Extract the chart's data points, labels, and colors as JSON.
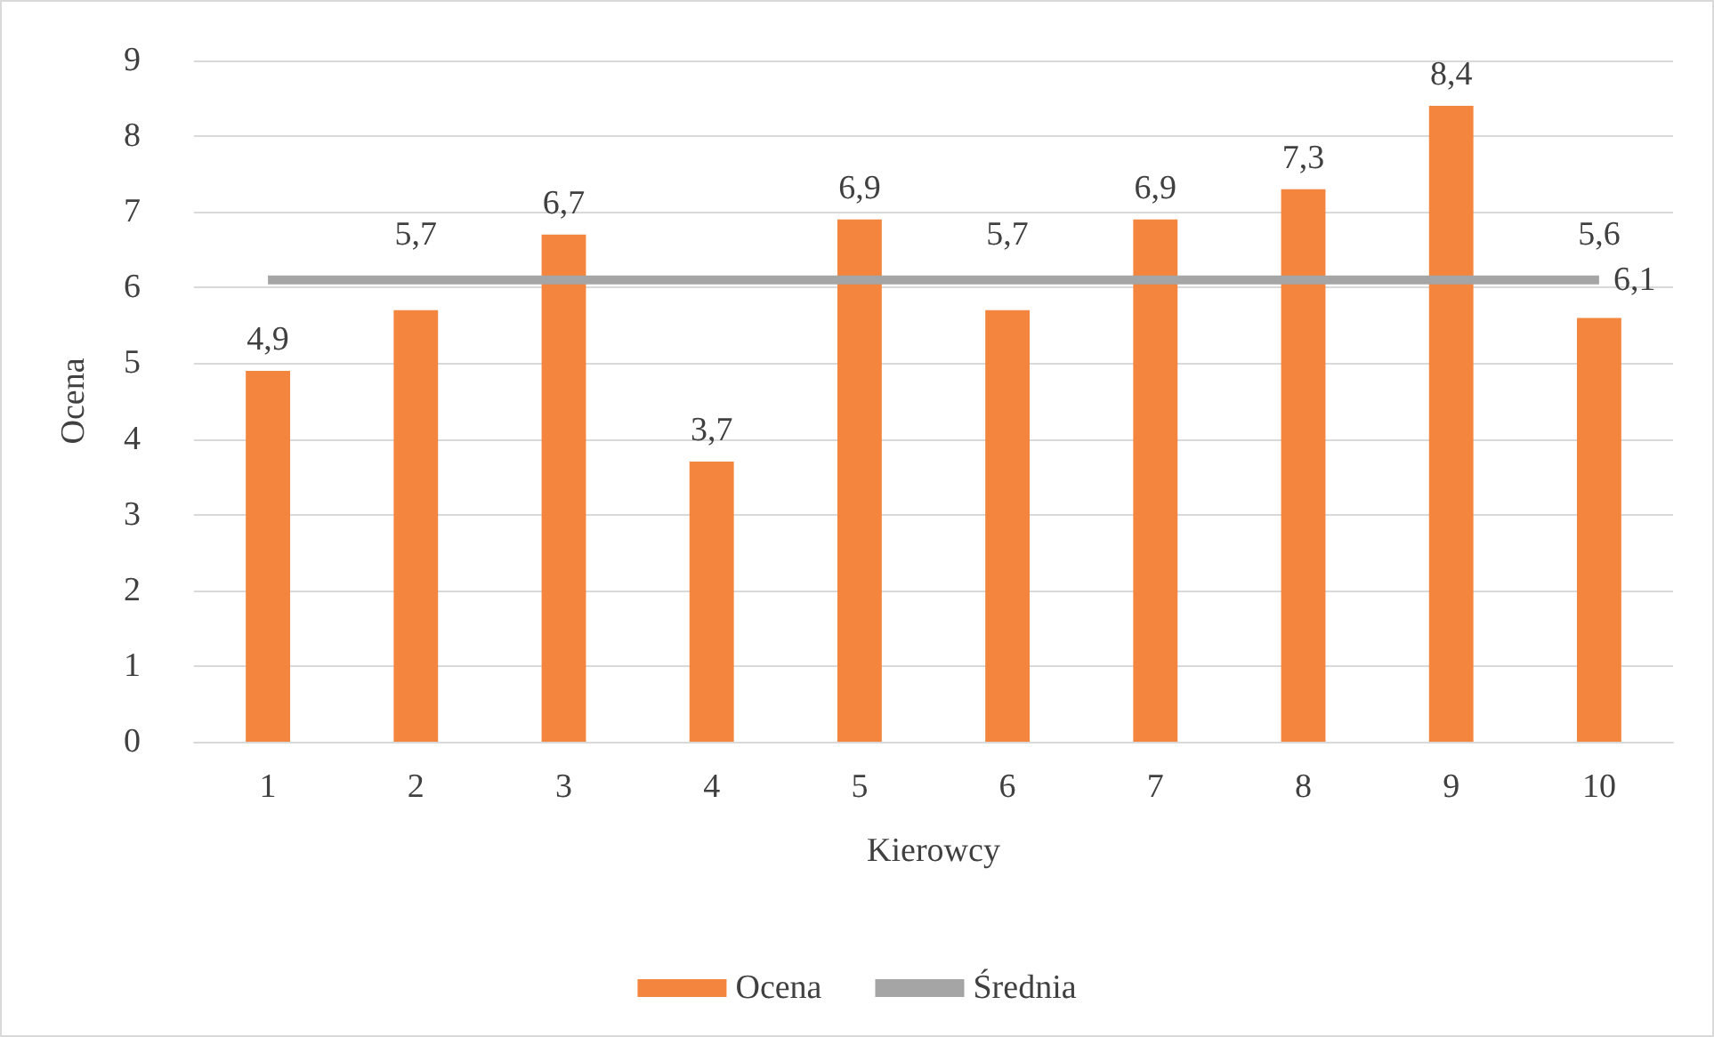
{
  "chart_data": {
    "type": "bar",
    "xlabel": "Kierowcy",
    "ylabel": "Ocena",
    "categories": [
      "1",
      "2",
      "3",
      "4",
      "5",
      "6",
      "7",
      "8",
      "9",
      "10"
    ],
    "series": [
      {
        "name": "Ocena",
        "color": "#f4853e",
        "values": [
          4.9,
          5.7,
          6.7,
          3.7,
          6.9,
          5.7,
          6.9,
          7.3,
          8.4,
          5.6
        ],
        "value_labels": [
          "4,9",
          "5,7",
          "6,7",
          "3,7",
          "6,9",
          "5,7",
          "6,9",
          "7,3",
          "8,4",
          "5,6"
        ]
      },
      {
        "name": "Średnia",
        "type": "line",
        "color": "#a5a5a5",
        "marker": "none",
        "values": [
          6.1,
          6.1,
          6.1,
          6.1,
          6.1,
          6.1,
          6.1,
          6.1,
          6.1,
          6.1
        ],
        "value_labels": [
          null,
          null,
          null,
          null,
          null,
          null,
          null,
          null,
          null,
          "6,1"
        ]
      }
    ],
    "ylim": [
      0,
      9
    ],
    "yticks": [
      0,
      1,
      2,
      3,
      4,
      5,
      6,
      7,
      8,
      9
    ],
    "grid": "y",
    "legend": "bottom"
  }
}
